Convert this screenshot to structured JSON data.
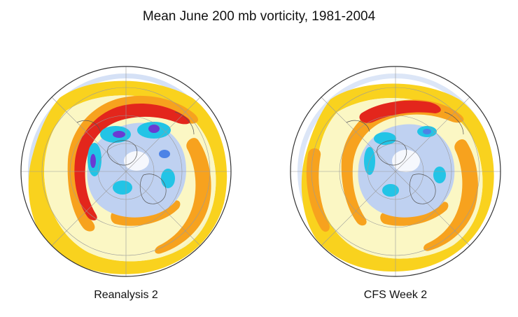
{
  "figure": {
    "title": "Mean June 200 mb vorticity, 1981-2004"
  },
  "maps": [
    {
      "label": "Reanalysis 2",
      "model": "reanalysis"
    },
    {
      "label": "CFS Week 2",
      "model": "cfs"
    }
  ],
  "palette": {
    "deep_red": "#e3261c",
    "orange_red": "#f26b25",
    "orange": "#f7a21e",
    "yellow": "#f9d21e",
    "pale_yellow": "#fbf6be",
    "light_blue": "#bfd1f1",
    "cyan": "#22c4e6",
    "medium_blue": "#4c83e6",
    "purple": "#6a3bd3",
    "land_line": "#8a8a8a",
    "grid_line": "#9a9a9a"
  }
}
